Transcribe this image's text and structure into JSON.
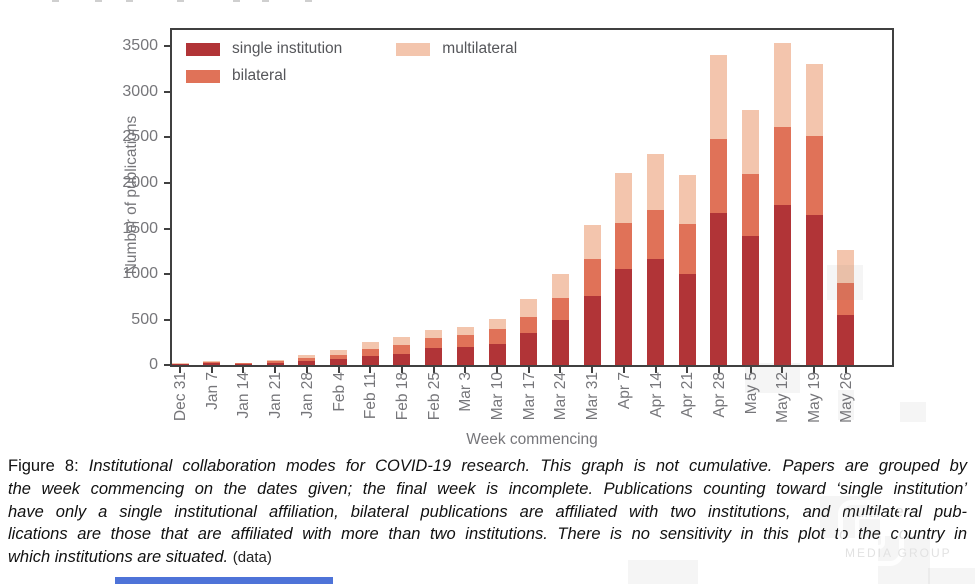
{
  "chart_data": {
    "type": "bar",
    "stacked": true,
    "title": "",
    "xlabel": "Week commencing",
    "ylabel": "Number of publications",
    "ylim": [
      0,
      3680
    ],
    "yticks": [
      0,
      500,
      1000,
      1500,
      2000,
      2500,
      3000,
      3500
    ],
    "grid": false,
    "legend_position": "upper left",
    "categories": [
      "Dec 31",
      "Jan 7",
      "Jan 14",
      "Jan 21",
      "Jan 28",
      "Feb 4",
      "Feb 11",
      "Feb 18",
      "Feb 25",
      "Mar 3",
      "Mar 10",
      "Mar 17",
      "Mar 24",
      "Mar 31",
      "Apr 7",
      "Apr 14",
      "Apr 21",
      "Apr 28",
      "May 5",
      "May 12",
      "May 19",
      "May 26"
    ],
    "series": [
      {
        "name": "single institution",
        "color": "#b13437",
        "values": [
          12,
          18,
          11,
          26,
          45,
          65,
          95,
          120,
          185,
          200,
          235,
          355,
          490,
          760,
          1055,
          1160,
          1000,
          1675,
          1415,
          1760,
          1645,
          550
        ]
      },
      {
        "name": "bilateral",
        "color": "#e07258",
        "values": [
          4,
          14,
          11,
          22,
          35,
          50,
          80,
          100,
          110,
          135,
          165,
          170,
          250,
          410,
          510,
          540,
          550,
          810,
          685,
          860,
          870,
          350
        ]
      },
      {
        "name": "multilateral",
        "color": "#f3c5ad",
        "values": [
          3,
          8,
          4,
          11,
          30,
          50,
          75,
          90,
          90,
          85,
          110,
          200,
          265,
          370,
          545,
          615,
          535,
          920,
          700,
          920,
          795,
          360
        ]
      }
    ]
  },
  "caption": {
    "lines": [
      [
        {
          "t": "Figure 8: ",
          "i": false
        },
        {
          "t": "Institutional collaboration modes for COVID-19 research. This graph is not cumulative. Papers are grouped by",
          "i": true
        }
      ],
      [
        {
          "t": "the week commencing on the dates given; the final week is incomplete. Publications counting toward ‘single institution’",
          "i": true
        }
      ],
      [
        {
          "t": "have only a single institutional affiliation, bilateral publications are affiliated with two institutions, and multilateral pub-",
          "i": true
        }
      ],
      [
        {
          "t": "lications are those that are affiliated with more than two institutions. There is no sensitivity in this plot to the country in",
          "i": true
        }
      ],
      [
        {
          "t": "which institutions are situated. ",
          "i": true
        },
        {
          "t": "(data)",
          "i": false,
          "link": true
        }
      ]
    ]
  },
  "watermark": {
    "text": "MEDIA GROUP"
  },
  "colors": {
    "single_institution": "#b13437",
    "bilateral": "#e07258",
    "multilateral": "#f3c5ad",
    "axis": "#404040",
    "tick_label": "#76767a",
    "accent_strip": "#4e73d8"
  }
}
